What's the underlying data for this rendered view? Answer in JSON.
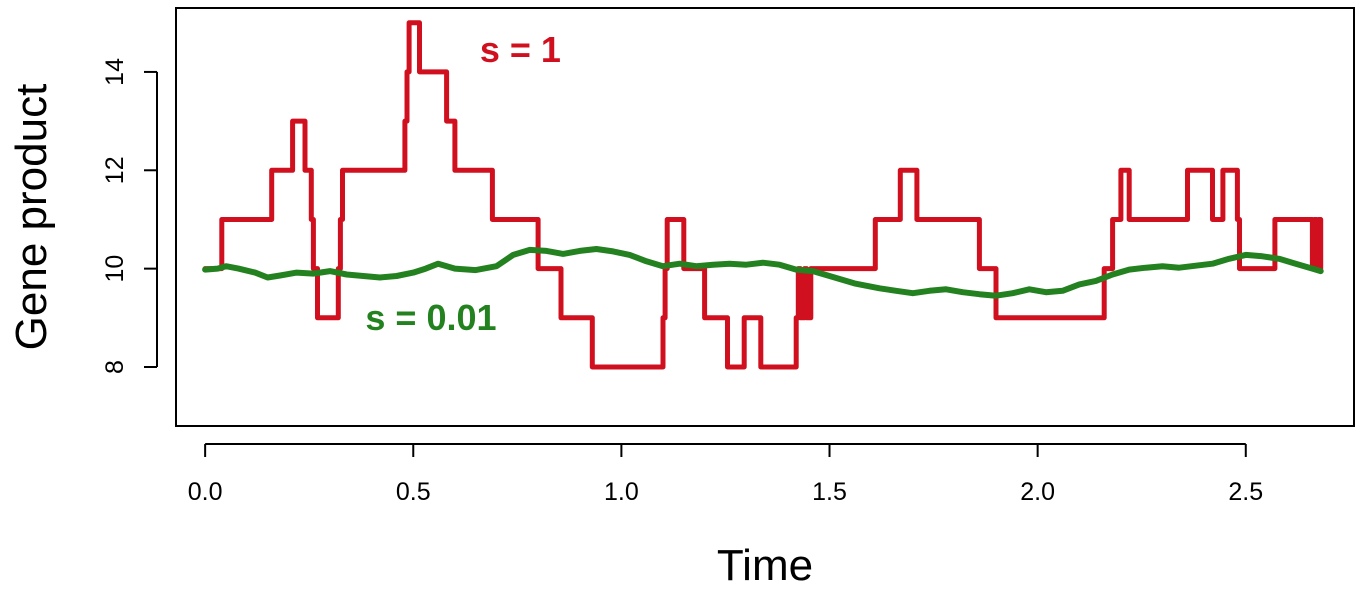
{
  "chart_data": {
    "type": "line",
    "title": "",
    "xlabel": "Time",
    "ylabel": "Gene product",
    "xlim": [
      -0.07,
      2.76
    ],
    "ylim": [
      6.8,
      15.3
    ],
    "x_ticks": [
      {
        "value": 0.0,
        "label": "0.0"
      },
      {
        "value": 0.5,
        "label": "0.5"
      },
      {
        "value": 1.0,
        "label": "1.0"
      },
      {
        "value": 1.5,
        "label": "1.5"
      },
      {
        "value": 2.0,
        "label": "2.0"
      },
      {
        "value": 2.5,
        "label": "2.5"
      }
    ],
    "y_ticks": [
      {
        "value": 8,
        "label": "8"
      },
      {
        "value": 10,
        "label": "10"
      },
      {
        "value": 12,
        "label": "12"
      },
      {
        "value": 14,
        "label": "14"
      }
    ],
    "grid": false,
    "legend": "none",
    "series": [
      {
        "name": "s = 1",
        "label_x": 0.66,
        "label_y": 14.2,
        "color": "#d0101f",
        "line_style": "step",
        "points": [
          [
            0.0,
            10
          ],
          [
            0.04,
            11
          ],
          [
            0.06,
            11
          ],
          [
            0.16,
            12
          ],
          [
            0.21,
            13
          ],
          [
            0.24,
            12
          ],
          [
            0.255,
            11
          ],
          [
            0.26,
            10
          ],
          [
            0.27,
            9
          ],
          [
            0.3,
            9
          ],
          [
            0.32,
            10
          ],
          [
            0.325,
            11
          ],
          [
            0.33,
            12
          ],
          [
            0.48,
            13
          ],
          [
            0.485,
            14
          ],
          [
            0.49,
            15
          ],
          [
            0.515,
            14
          ],
          [
            0.58,
            13
          ],
          [
            0.6,
            12
          ],
          [
            0.69,
            11
          ],
          [
            0.8,
            10
          ],
          [
            0.855,
            9
          ],
          [
            0.93,
            8
          ],
          [
            1.1,
            9
          ],
          [
            1.105,
            10
          ],
          [
            1.11,
            11
          ],
          [
            1.15,
            10
          ],
          [
            1.2,
            9
          ],
          [
            1.255,
            8
          ],
          [
            1.295,
            9
          ],
          [
            1.335,
            8
          ],
          [
            1.42,
            9
          ],
          [
            1.425,
            10
          ],
          [
            1.43,
            9
          ],
          [
            1.44,
            10
          ],
          [
            1.445,
            9
          ],
          [
            1.455,
            10
          ],
          [
            1.61,
            11
          ],
          [
            1.67,
            12
          ],
          [
            1.71,
            11
          ],
          [
            1.86,
            10
          ],
          [
            1.9,
            9
          ],
          [
            2.16,
            10
          ],
          [
            2.18,
            11
          ],
          [
            2.2,
            12
          ],
          [
            2.22,
            11
          ],
          [
            2.36,
            12
          ],
          [
            2.42,
            11
          ],
          [
            2.445,
            12
          ],
          [
            2.48,
            11
          ],
          [
            2.485,
            10
          ],
          [
            2.5,
            10
          ],
          [
            2.57,
            11
          ],
          [
            2.66,
            10
          ],
          [
            2.665,
            11
          ],
          [
            2.67,
            10
          ],
          [
            2.675,
            11
          ],
          [
            2.68,
            10
          ]
        ]
      },
      {
        "name": "s = 0.01",
        "label_x": 0.385,
        "label_y": 8.75,
        "color": "#23821f",
        "line_style": "smooth",
        "points": [
          [
            0.0,
            9.98
          ],
          [
            0.03,
            10.0
          ],
          [
            0.05,
            10.05
          ],
          [
            0.08,
            10.0
          ],
          [
            0.12,
            9.92
          ],
          [
            0.15,
            9.82
          ],
          [
            0.18,
            9.86
          ],
          [
            0.22,
            9.92
          ],
          [
            0.26,
            9.9
          ],
          [
            0.3,
            9.95
          ],
          [
            0.34,
            9.88
          ],
          [
            0.38,
            9.85
          ],
          [
            0.42,
            9.82
          ],
          [
            0.46,
            9.85
          ],
          [
            0.5,
            9.92
          ],
          [
            0.53,
            10.0
          ],
          [
            0.56,
            10.1
          ],
          [
            0.6,
            10.0
          ],
          [
            0.65,
            9.97
          ],
          [
            0.7,
            10.05
          ],
          [
            0.74,
            10.28
          ],
          [
            0.78,
            10.38
          ],
          [
            0.82,
            10.36
          ],
          [
            0.86,
            10.3
          ],
          [
            0.9,
            10.36
          ],
          [
            0.94,
            10.4
          ],
          [
            0.98,
            10.35
          ],
          [
            1.02,
            10.28
          ],
          [
            1.06,
            10.15
          ],
          [
            1.1,
            10.05
          ],
          [
            1.14,
            10.1
          ],
          [
            1.18,
            10.05
          ],
          [
            1.22,
            10.08
          ],
          [
            1.26,
            10.1
          ],
          [
            1.3,
            10.08
          ],
          [
            1.34,
            10.12
          ],
          [
            1.38,
            10.08
          ],
          [
            1.42,
            9.98
          ],
          [
            1.46,
            9.95
          ],
          [
            1.5,
            9.85
          ],
          [
            1.56,
            9.7
          ],
          [
            1.62,
            9.6
          ],
          [
            1.66,
            9.55
          ],
          [
            1.7,
            9.5
          ],
          [
            1.74,
            9.55
          ],
          [
            1.78,
            9.58
          ],
          [
            1.82,
            9.52
          ],
          [
            1.86,
            9.48
          ],
          [
            1.9,
            9.45
          ],
          [
            1.94,
            9.5
          ],
          [
            1.98,
            9.58
          ],
          [
            2.02,
            9.52
          ],
          [
            2.06,
            9.55
          ],
          [
            2.1,
            9.68
          ],
          [
            2.14,
            9.75
          ],
          [
            2.18,
            9.88
          ],
          [
            2.22,
            9.98
          ],
          [
            2.26,
            10.02
          ],
          [
            2.3,
            10.05
          ],
          [
            2.34,
            10.02
          ],
          [
            2.38,
            10.06
          ],
          [
            2.42,
            10.1
          ],
          [
            2.46,
            10.2
          ],
          [
            2.5,
            10.28
          ],
          [
            2.54,
            10.25
          ],
          [
            2.58,
            10.2
          ],
          [
            2.62,
            10.1
          ],
          [
            2.66,
            10.0
          ],
          [
            2.68,
            9.95
          ]
        ]
      }
    ]
  }
}
